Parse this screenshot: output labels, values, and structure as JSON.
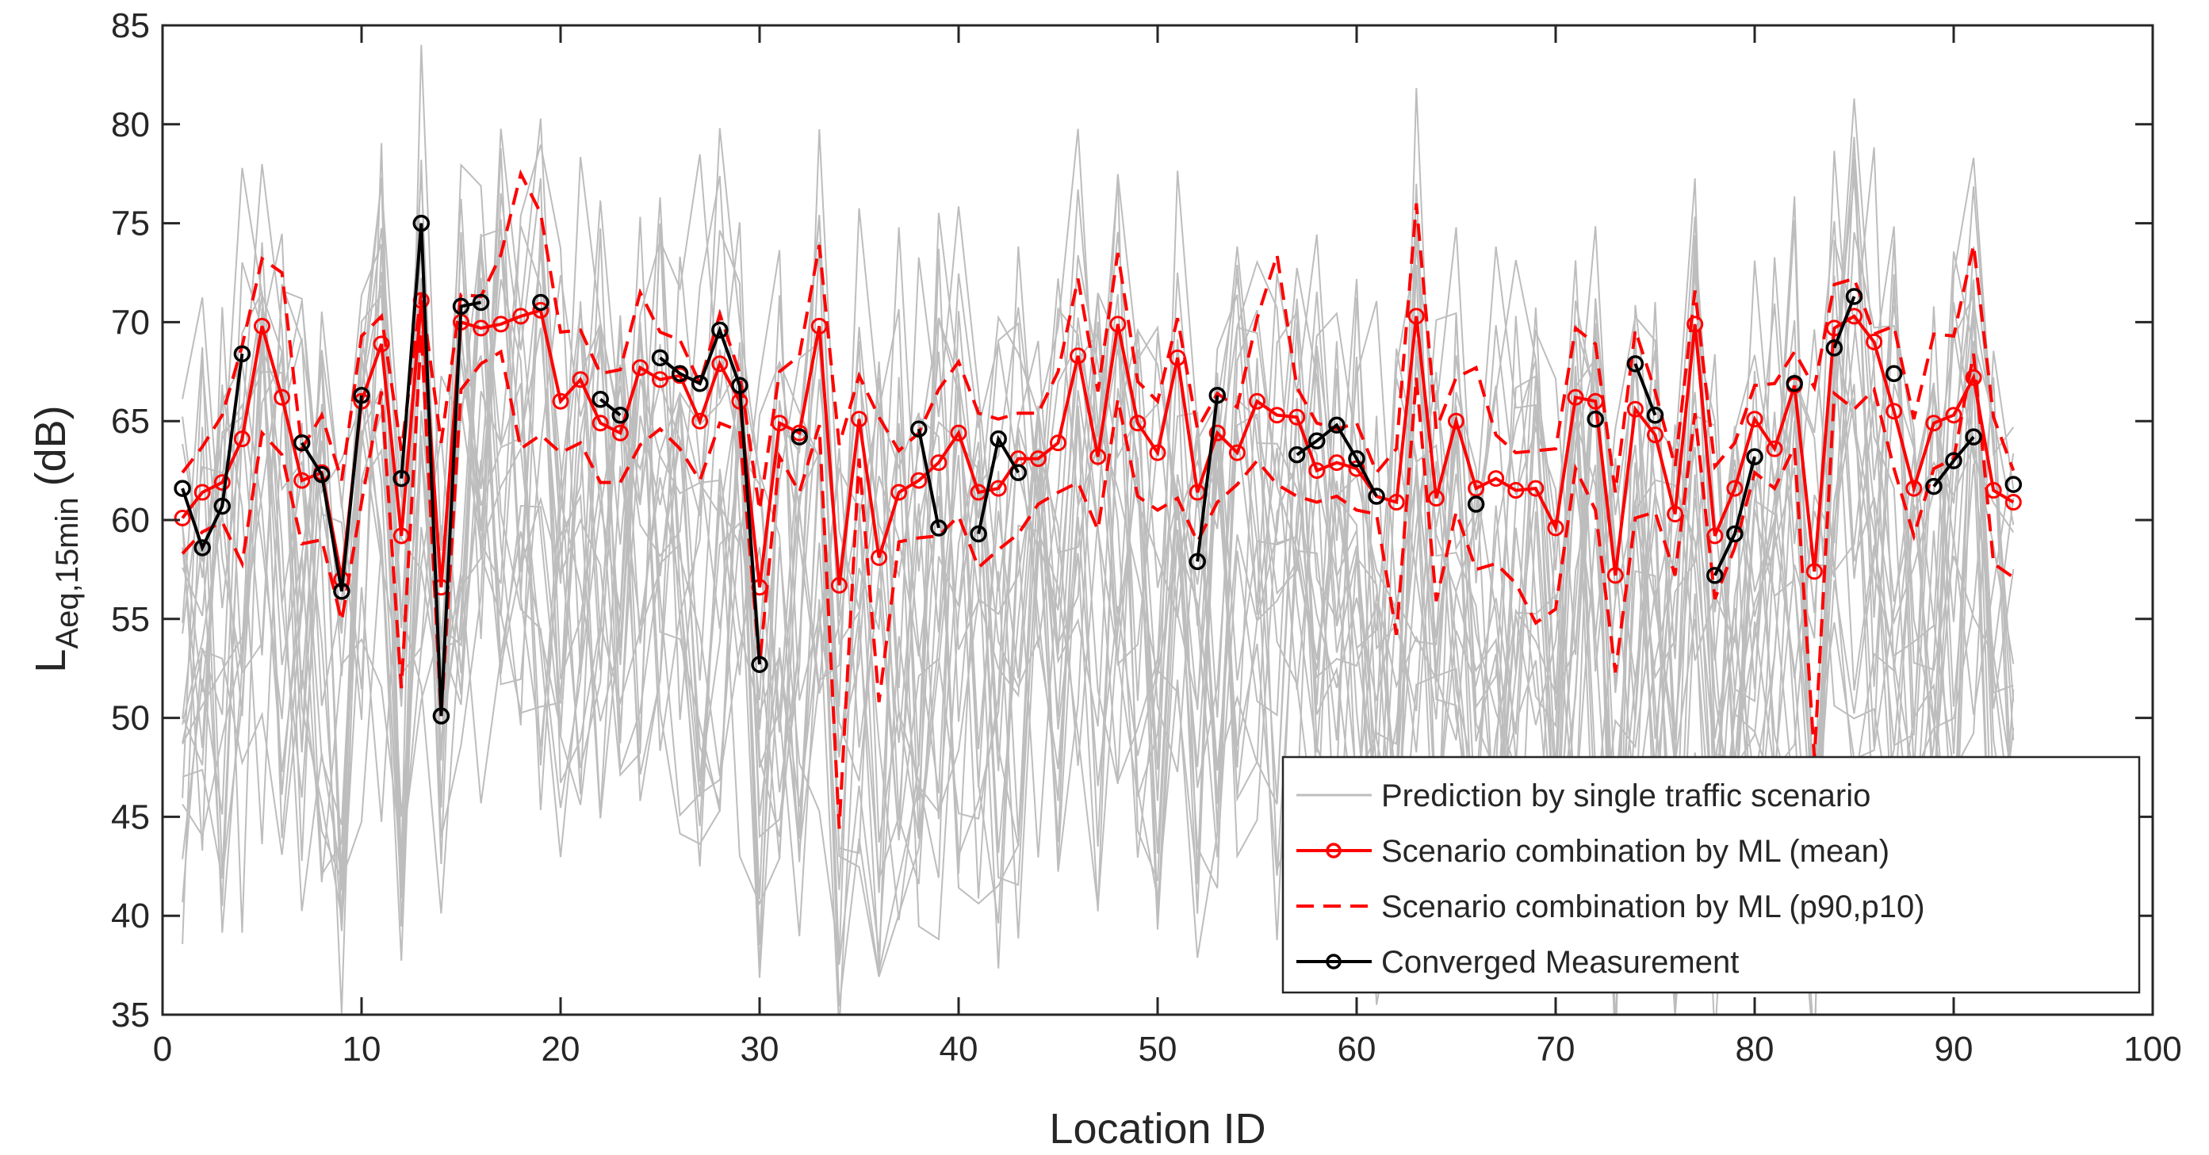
{
  "chart_data": {
    "type": "line",
    "xlabel": "Location ID",
    "ylabel": {
      "main": "L",
      "subscript": "Aeq,15min",
      "suffix": "(dB)"
    },
    "xlim": [
      0,
      100
    ],
    "ylim": [
      35,
      85
    ],
    "xticks": [
      0,
      10,
      20,
      30,
      40,
      50,
      60,
      70,
      80,
      90,
      100
    ],
    "yticks": [
      35,
      40,
      45,
      50,
      55,
      60,
      65,
      70,
      75,
      80,
      85
    ],
    "grid": false,
    "legend_location": "bottom-right",
    "colors": {
      "gray": "#bdbdbd",
      "red": "#ff0000",
      "black": "#000000"
    },
    "legend": [
      {
        "label": "Prediction by single traffic scenario",
        "style": "gray-line"
      },
      {
        "label": "Scenario combination by ML (mean)",
        "style": "red-line-marker"
      },
      {
        "label": "Scenario combination by ML (p90,p10)",
        "style": "red-dashed"
      },
      {
        "label": "Converged Measurement",
        "style": "black-line-marker"
      }
    ],
    "mean": [
      60.1,
      61.4,
      61.9,
      64.1,
      69.8,
      66.2,
      62.0,
      62.4,
      57.0,
      66.0,
      68.9,
      59.2,
      71.1,
      56.6,
      70.0,
      69.7,
      69.9,
      70.3,
      70.6,
      66.0,
      67.1,
      64.9,
      64.4,
      67.7,
      67.1,
      67.3,
      65.0,
      67.9,
      66.0,
      56.6,
      64.9,
      64.4,
      69.8,
      56.7,
      65.1,
      58.1,
      61.4,
      62.0,
      62.9,
      64.4,
      61.4,
      61.6,
      63.1,
      63.1,
      63.9,
      68.3,
      63.2,
      69.9,
      64.9,
      63.4,
      68.2,
      61.4,
      64.4,
      63.4,
      66.0,
      65.3,
      65.2,
      62.5,
      62.9,
      62.6,
      61.2,
      60.9,
      70.3,
      61.1,
      65.0,
      61.6,
      62.1,
      61.5,
      61.6,
      59.6,
      66.2,
      66.0,
      57.2,
      65.6,
      64.3,
      60.3,
      69.9,
      59.2,
      61.6,
      65.1,
      63.6,
      66.8,
      57.4,
      69.7,
      70.3,
      69.0,
      65.5,
      61.6,
      64.9,
      65.3,
      67.2,
      61.5,
      60.9
    ],
    "p90": [
      62.4,
      63.7,
      65.3,
      68.8,
      73.2,
      72.5,
      63.6,
      65.3,
      62.0,
      69.3,
      70.3,
      63.5,
      71.5,
      63.9,
      71.4,
      71.3,
      73.4,
      77.5,
      75.5,
      69.5,
      69.6,
      67.4,
      67.6,
      71.5,
      69.5,
      69.1,
      66.9,
      70.4,
      67.4,
      60.5,
      67.5,
      68.3,
      73.9,
      63.8,
      67.3,
      65.2,
      63.5,
      64.4,
      66.6,
      68.0,
      65.4,
      65.1,
      65.4,
      65.4,
      67.5,
      72.2,
      66.5,
      73.5,
      67.0,
      66.0,
      70.2,
      64.6,
      66.4,
      65.7,
      70.2,
      73.4,
      66.7,
      64.9,
      64.6,
      64.9,
      62.4,
      63.6,
      76.0,
      64.6,
      67.2,
      67.7,
      64.3,
      63.4,
      63.5,
      63.6,
      69.7,
      68.9,
      61.4,
      69.6,
      66.5,
      62.7,
      71.6,
      62.7,
      63.9,
      66.8,
      66.9,
      68.5,
      66.7,
      71.9,
      72.2,
      69.4,
      69.8,
      65.1,
      69.4,
      69.3,
      73.9,
      65.2,
      62.5
    ],
    "p10": [
      58.3,
      59.4,
      59.9,
      57.8,
      64.4,
      63.3,
      58.8,
      59.0,
      54.9,
      60.9,
      66.5,
      51.5,
      69.5,
      50.1,
      66.6,
      67.9,
      68.5,
      63.6,
      64.3,
      63.4,
      63.9,
      61.9,
      61.9,
      63.8,
      64.6,
      63.6,
      62.0,
      64.9,
      64.5,
      52.7,
      63.2,
      61.4,
      64.8,
      44.4,
      63.1,
      50.8,
      58.9,
      59.1,
      59.2,
      60.2,
      57.6,
      58.5,
      59.3,
      60.8,
      61.4,
      61.9,
      59.5,
      66.1,
      61.2,
      60.5,
      61.1,
      58.9,
      60.9,
      61.8,
      63.0,
      61.8,
      61.2,
      60.9,
      61.2,
      60.5,
      60.3,
      54.2,
      67.2,
      55.9,
      60.4,
      57.5,
      57.8,
      56.8,
      54.8,
      55.5,
      62.6,
      60.5,
      52.3,
      60.1,
      60.4,
      57.2,
      65.4,
      56.0,
      58.6,
      62.4,
      61.6,
      63.7,
      48.0,
      66.4,
      65.6,
      66.6,
      62.6,
      59.2,
      62.6,
      63.1,
      68.4,
      57.8,
      57.1
    ],
    "measurement_segments": [
      {
        "x": [
          1,
          2,
          3,
          4
        ],
        "y": [
          61.6,
          58.6,
          60.7,
          68.4
        ]
      },
      {
        "x": [
          7,
          8,
          9,
          10
        ],
        "y": [
          63.9,
          62.3,
          56.4,
          66.3
        ]
      },
      {
        "x": [
          12,
          13,
          14,
          15,
          16
        ],
        "y": [
          62.1,
          75.0,
          50.1,
          70.8,
          71.0
        ]
      },
      {
        "x": [
          19
        ],
        "y": [
          71.0
        ]
      },
      {
        "x": [
          22,
          23
        ],
        "y": [
          66.1,
          65.3
        ]
      },
      {
        "x": [
          25,
          26,
          27,
          28,
          29,
          30
        ],
        "y": [
          68.2,
          67.4,
          66.9,
          69.6,
          66.8,
          52.7
        ]
      },
      {
        "x": [
          32
        ],
        "y": [
          64.2
        ]
      },
      {
        "x": [
          38,
          39
        ],
        "y": [
          64.6,
          59.6
        ]
      },
      {
        "x": [
          41,
          42,
          43
        ],
        "y": [
          59.3,
          64.1,
          62.4
        ]
      },
      {
        "x": [
          52,
          53
        ],
        "y": [
          57.9,
          66.3
        ]
      },
      {
        "x": [
          57,
          58,
          59,
          60,
          61
        ],
        "y": [
          63.3,
          64.0,
          64.8,
          63.1,
          61.2
        ]
      },
      {
        "x": [
          66
        ],
        "y": [
          60.8
        ]
      },
      {
        "x": [
          72
        ],
        "y": [
          65.1
        ]
      },
      {
        "x": [
          74,
          75
        ],
        "y": [
          67.9,
          65.3
        ]
      },
      {
        "x": [
          78,
          79,
          80
        ],
        "y": [
          57.2,
          59.3,
          63.2
        ]
      },
      {
        "x": [
          82
        ],
        "y": [
          66.9
        ]
      },
      {
        "x": [
          84,
          85
        ],
        "y": [
          68.7,
          71.3
        ]
      },
      {
        "x": [
          87
        ],
        "y": [
          67.4
        ]
      },
      {
        "x": [
          89,
          90,
          91
        ],
        "y": [
          61.7,
          63.0,
          64.2
        ]
      },
      {
        "x": [
          93
        ],
        "y": [
          61.8
        ]
      }
    ],
    "single_scenario_series_count": 20
  }
}
